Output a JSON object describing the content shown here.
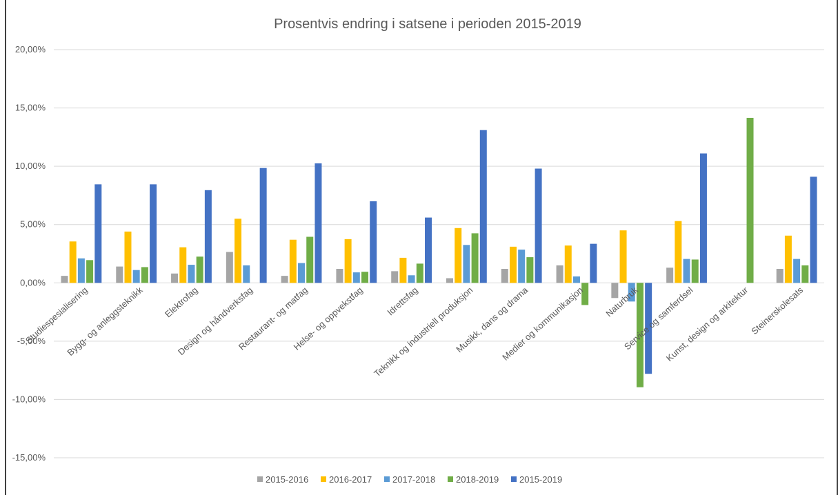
{
  "chart_data": {
    "type": "bar",
    "title": "Prosentvis endring i satsene i perioden 2015-2019",
    "categories": [
      "Studiespesialisering",
      "Bygg- og anleggsteknikk",
      "Elektrofag",
      "Design og håndverksfag",
      "Restaurant- og matfag",
      "Helse- og oppvekstfag",
      "Idrettsfag",
      "Teknikk og industriell produksjon",
      "Musikk, dans og drama",
      "Medier og kommunikasjon",
      "Naturbruk",
      "Service og samferdsel",
      "Kunst, design og arkitektur",
      "Steinerskolesats"
    ],
    "series": [
      {
        "name": "2015-2016",
        "color": "#a5a5a5",
        "values": [
          0.6,
          1.4,
          0.8,
          2.65,
          0.6,
          1.2,
          1.0,
          0.4,
          1.2,
          1.5,
          -1.3,
          1.3,
          null,
          1.2
        ]
      },
      {
        "name": "2016-2017",
        "color": "#ffc000",
        "values": [
          3.55,
          4.4,
          3.05,
          5.5,
          3.7,
          3.75,
          2.15,
          4.7,
          3.1,
          3.2,
          4.5,
          5.3,
          null,
          4.05
        ]
      },
      {
        "name": "2017-2018",
        "color": "#5b9bd5",
        "values": [
          2.1,
          1.1,
          1.55,
          1.5,
          1.7,
          0.9,
          0.65,
          3.25,
          2.85,
          0.55,
          -1.6,
          2.05,
          null,
          2.05
        ]
      },
      {
        "name": "2018-2019",
        "color": "#70ad47",
        "values": [
          1.95,
          1.35,
          2.25,
          null,
          3.95,
          0.95,
          1.65,
          4.25,
          2.2,
          -1.9,
          -8.95,
          2.0,
          14.15,
          1.5
        ]
      },
      {
        "name": "2015-2019",
        "color": "#4472c4",
        "values": [
          8.45,
          8.45,
          7.95,
          9.85,
          10.25,
          7.0,
          5.6,
          13.1,
          9.8,
          3.35,
          -7.8,
          11.1,
          null,
          9.1
        ]
      }
    ],
    "ylim": [
      -15,
      20
    ],
    "yticks": [
      "20,00%",
      "15,00%",
      "10,00%",
      "5,00%",
      "0,00%",
      "-5,00%",
      "-10,00%",
      "-15,00%"
    ],
    "ytick_values": [
      20,
      15,
      10,
      5,
      0,
      -5,
      -10,
      -15
    ],
    "grid": true,
    "legend_position": "bottom"
  }
}
